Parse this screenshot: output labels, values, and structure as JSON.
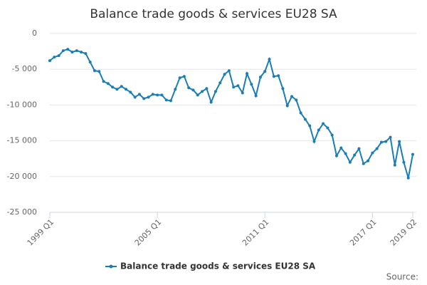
{
  "chart_data": {
    "type": "line",
    "title": "Balance trade goods & services EU28 SA",
    "source": "Source:",
    "categories": [
      "1999 Q1",
      null,
      null,
      null,
      null,
      null,
      null,
      null,
      null,
      null,
      null,
      null,
      null,
      null,
      null,
      null,
      null,
      null,
      null,
      null,
      null,
      null,
      null,
      null,
      "2005 Q1",
      null,
      null,
      null,
      null,
      null,
      null,
      null,
      null,
      null,
      null,
      null,
      null,
      null,
      null,
      null,
      null,
      null,
      null,
      null,
      null,
      null,
      null,
      null,
      "2011 Q1",
      null,
      null,
      null,
      null,
      null,
      null,
      null,
      null,
      null,
      null,
      null,
      null,
      null,
      null,
      null,
      null,
      null,
      null,
      null,
      null,
      null,
      null,
      null,
      "2017 Q1",
      null,
      null,
      null,
      null,
      null,
      null,
      null,
      null,
      "2019 Q2"
    ],
    "series": [
      {
        "name": "Balance trade goods & services EU28 SA",
        "color": "#1a7db5",
        "values": [
          -3800,
          -3300,
          -3100,
          -2400,
          -2200,
          -2600,
          -2400,
          -2600,
          -2800,
          -4000,
          -5200,
          -5300,
          -6700,
          -7000,
          -7500,
          -7800,
          -7400,
          -7800,
          -8200,
          -8900,
          -8500,
          -9100,
          -8900,
          -8500,
          -8600,
          -8600,
          -9300,
          -9400,
          -7800,
          -6200,
          -6000,
          -7600,
          -7900,
          -8600,
          -8100,
          -7700,
          -9600,
          -8100,
          -6900,
          -5700,
          -5200,
          -7500,
          -7300,
          -8300,
          -5600,
          -7100,
          -8700,
          -6100,
          -5300,
          -3600,
          -6000,
          -5900,
          -7700,
          -10100,
          -8800,
          -9300,
          -11100,
          -12000,
          -12900,
          -15100,
          -13500,
          -12600,
          -13200,
          -14200,
          -17100,
          -16000,
          -16800,
          -18000,
          -17000,
          -16100,
          -18200,
          -17800,
          -16700,
          -16100,
          -15200,
          -15100,
          -14500,
          -18400,
          -15100,
          -18000,
          -20200,
          -16900
        ]
      }
    ],
    "ylim": [
      -25000,
      0
    ],
    "yticks": [
      {
        "value": 0,
        "label": "0"
      },
      {
        "value": -5000,
        "label": "-5 000"
      },
      {
        "value": -10000,
        "label": "-10 000"
      },
      {
        "value": -15000,
        "label": "-15 000"
      },
      {
        "value": -20000,
        "label": "-20 000"
      },
      {
        "value": -25000,
        "label": "-25 000"
      }
    ],
    "grid": true
  }
}
